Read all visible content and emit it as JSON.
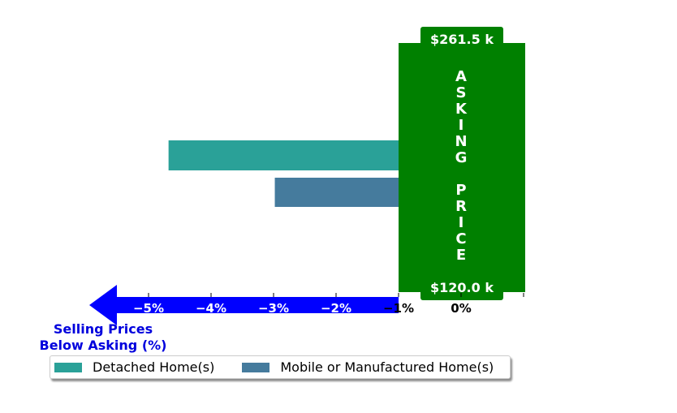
{
  "chart_data": {
    "type": "bar",
    "orientation": "horizontal",
    "series": [
      {
        "name": "Detached Home(s)",
        "value": -4.9,
        "color": "#2aa198"
      },
      {
        "name": "Mobile or Manufactured Home(s)",
        "value": -3.2,
        "color": "#457b9d"
      }
    ],
    "x_ticks": [
      {
        "value": -5,
        "label": "−5%"
      },
      {
        "value": -4,
        "label": "−4%"
      },
      {
        "value": -3,
        "label": "−3%"
      },
      {
        "value": -2,
        "label": "−2%"
      },
      {
        "value": -1,
        "label": "−1%"
      },
      {
        "value": 0,
        "label": "0%"
      }
    ],
    "xlim": [
      -6,
      2
    ],
    "axis_caption": [
      "Selling Prices",
      "Below Asking (%)"
    ],
    "asking_price": {
      "label": "ASKING PRICE",
      "top_value": "$261.5 k",
      "bottom_value": "$120.0 k",
      "color": "#008000"
    },
    "arrow_color": "#0000ff",
    "caption_color": "#0000dd",
    "legend": {
      "placement": "bottom",
      "ncol": 2
    }
  }
}
